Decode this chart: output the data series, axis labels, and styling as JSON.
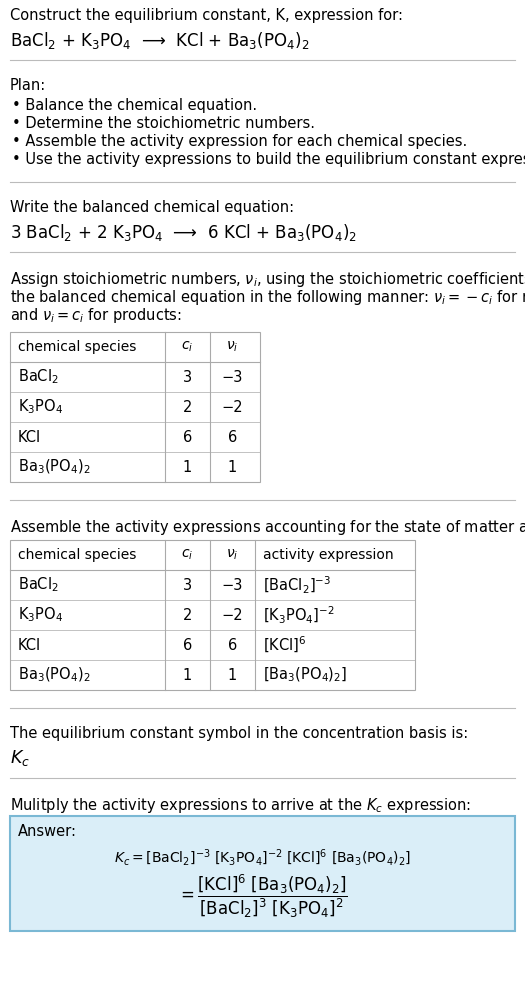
{
  "title_line1": "Construct the equilibrium constant, K, expression for:",
  "reaction_unbalanced": "BaCl$_2$ + K$_3$PO$_4$  ⟶  KCl + Ba$_3$(PO$_4$)$_2$",
  "plan_header": "Plan:",
  "plan_items": [
    "• Balance the chemical equation.",
    "• Determine the stoichiometric numbers.",
    "• Assemble the activity expression for each chemical species.",
    "• Use the activity expressions to build the equilibrium constant expression."
  ],
  "balanced_header": "Write the balanced chemical equation:",
  "reaction_balanced": "3 BaCl$_2$ + 2 K$_3$PO$_4$  ⟶  6 KCl + Ba$_3$(PO$_4$)$_2$",
  "stoich_header_lines": [
    "Assign stoichiometric numbers, $\\nu_i$, using the stoichiometric coefficients, $c_i$, from",
    "the balanced chemical equation in the following manner: $\\nu_i = -c_i$ for reactants",
    "and $\\nu_i = c_i$ for products:"
  ],
  "table1_cols": [
    "chemical species",
    "$c_i$",
    "$\\nu_i$"
  ],
  "table1_rows": [
    [
      "BaCl$_2$",
      "3",
      "−3"
    ],
    [
      "K$_3$PO$_4$",
      "2",
      "−2"
    ],
    [
      "KCl",
      "6",
      "6"
    ],
    [
      "Ba$_3$(PO$_4$)$_2$",
      "1",
      "1"
    ]
  ],
  "activity_header": "Assemble the activity expressions accounting for the state of matter and $\\nu_i$:",
  "table2_cols": [
    "chemical species",
    "$c_i$",
    "$\\nu_i$",
    "activity expression"
  ],
  "table2_rows": [
    [
      "BaCl$_2$",
      "3",
      "−3",
      "[BaCl$_2$]$^{-3}$"
    ],
    [
      "K$_3$PO$_4$",
      "2",
      "−2",
      "[K$_3$PO$_4$]$^{-2}$"
    ],
    [
      "KCl",
      "6",
      "6",
      "[KCl]$^6$"
    ],
    [
      "Ba$_3$(PO$_4$)$_2$",
      "1",
      "1",
      "[Ba$_3$(PO$_4$)$_2$]"
    ]
  ],
  "kc_header": "The equilibrium constant symbol in the concentration basis is:",
  "kc_symbol": "$K_c$",
  "multiply_header": "Mulitply the activity expressions to arrive at the $K_c$ expression:",
  "answer_label": "Answer:",
  "answer_box_color": "#daeef8",
  "answer_border_color": "#7ab8d4",
  "bg_color": "#ffffff",
  "text_color": "#000000",
  "table_border_color": "#aaaaaa",
  "separator_color": "#bbbbbb",
  "font_size": 10.5
}
